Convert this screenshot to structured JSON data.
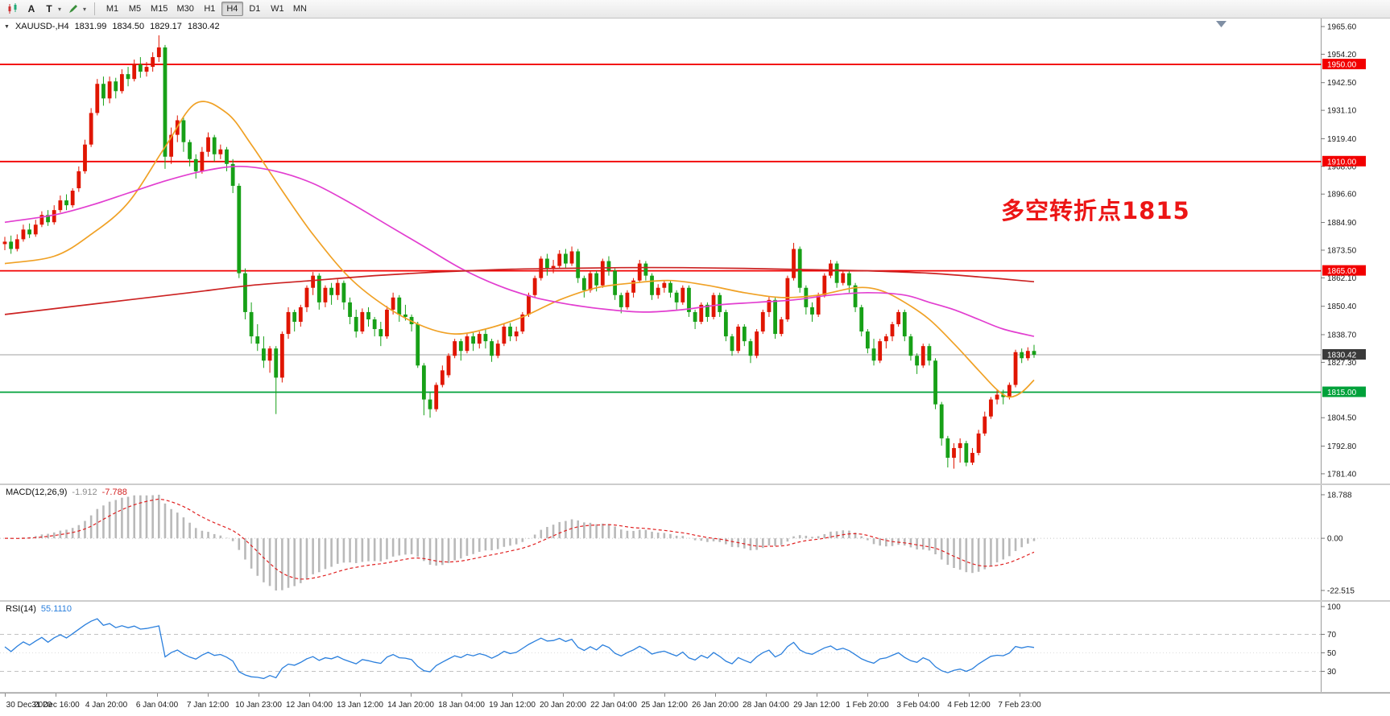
{
  "toolbar": {
    "tools": {
      "a_label": "A",
      "t_label": "T"
    },
    "timeframes": [
      "M1",
      "M5",
      "M15",
      "M30",
      "H1",
      "H4",
      "D1",
      "W1",
      "MN"
    ],
    "active_timeframe": "H4"
  },
  "price_chart": {
    "symbol_period": "XAUUSD-,H4",
    "ohlc": {
      "open": "1831.99",
      "high": "1834.50",
      "low": "1829.17",
      "close": "1830.42"
    },
    "annotation": "多空转折点1815",
    "axis_ticks": [
      "1965.60",
      "1954.20",
      "1942.50",
      "1931.10",
      "1919.40",
      "1908.00",
      "1896.60",
      "1884.90",
      "1873.50",
      "1862.10",
      "1850.40",
      "1838.70",
      "1827.30",
      "1804.50",
      "1792.80",
      "1781.40"
    ],
    "hlines": [
      {
        "value": 1950.0,
        "label": "1950.00",
        "color": "#f20000"
      },
      {
        "value": 1910.0,
        "label": "1910.00",
        "color": "#f20000"
      },
      {
        "value": 1865.0,
        "label": "1865.00",
        "color": "#f20000"
      },
      {
        "value": 1815.0,
        "label": "1815.00",
        "color": "#00a13a"
      }
    ],
    "current_price": {
      "value": 1830.42,
      "label": "1830.42",
      "line_color": "#a0a0a0",
      "badge_color": "#3a3a3a"
    }
  },
  "macd": {
    "label": "MACD(12,26,9)",
    "main_value": "-1.912",
    "signal_value": "-7.788",
    "axis_ticks": [
      "18.788",
      "0.00",
      "-22.515"
    ],
    "max": 18.788,
    "min": -22.515,
    "histogram_color": "#b9b9b9",
    "signal_color": "#e02020"
  },
  "rsi": {
    "label": "RSI(14)",
    "value": "55.1110",
    "axis_ticks": [
      "100",
      "70",
      "50",
      "30"
    ],
    "levels": [
      70,
      50,
      30
    ],
    "line_color": "#2a7fdd"
  },
  "chart_data": {
    "type": "candlestick",
    "symbol": "XAUUSD",
    "period": "H4",
    "up_color": "#e01500",
    "down_color": "#17a017",
    "ylim": [
      1781.4,
      1965.6
    ],
    "time_labels": [
      "30 Dec 2020",
      "31 Dec 16:00",
      "4 Jan 20:00",
      "6 Jan 04:00",
      "7 Jan 12:00",
      "10 Jan 23:00",
      "12 Jan 04:00",
      "13 Jan 12:00",
      "14 Jan 20:00",
      "18 Jan 04:00",
      "19 Jan 12:00",
      "20 Jan 20:00",
      "22 Jan 04:00",
      "25 Jan 12:00",
      "26 Jan 20:00",
      "28 Jan 04:00",
      "29 Jan 12:00",
      "1 Feb 20:00",
      "3 Feb 04:00",
      "4 Feb 12:00",
      "7 Feb 23:00"
    ],
    "candles": [
      [
        1876,
        1879,
        1873.5,
        1877
      ],
      [
        1877,
        1879.5,
        1872,
        1874
      ],
      [
        1874,
        1880,
        1873,
        1878
      ],
      [
        1878,
        1884,
        1877,
        1882
      ],
      [
        1882,
        1884.5,
        1878.5,
        1880
      ],
      [
        1880,
        1886,
        1879,
        1884
      ],
      [
        1884,
        1889.5,
        1883,
        1888
      ],
      [
        1888,
        1890,
        1883.5,
        1885
      ],
      [
        1885,
        1892,
        1884,
        1890
      ],
      [
        1890,
        1896,
        1889,
        1894
      ],
      [
        1894,
        1896.5,
        1890,
        1892
      ],
      [
        1892,
        1899,
        1891,
        1898
      ],
      [
        1899,
        1908,
        1897.5,
        1906
      ],
      [
        1906,
        1919,
        1905,
        1917
      ],
      [
        1917,
        1932,
        1916,
        1930
      ],
      [
        1930,
        1944,
        1929,
        1942
      ],
      [
        1942,
        1945,
        1933,
        1936
      ],
      [
        1936,
        1945,
        1934,
        1943
      ],
      [
        1943,
        1944.5,
        1936,
        1939
      ],
      [
        1939,
        1948,
        1938,
        1946
      ],
      [
        1946,
        1949,
        1941,
        1944
      ],
      [
        1944,
        1952,
        1943,
        1950
      ],
      [
        1950,
        1953,
        1944.5,
        1947
      ],
      [
        1947,
        1951,
        1945,
        1949
      ],
      [
        1949,
        1955,
        1947,
        1953
      ],
      [
        1953,
        1962,
        1951,
        1957
      ],
      [
        1957,
        1958,
        1907,
        1912
      ],
      [
        1912,
        1924,
        1909,
        1921
      ],
      [
        1921,
        1929,
        1918,
        1927
      ],
      [
        1927,
        1928,
        1914,
        1918
      ],
      [
        1918,
        1919,
        1908,
        1911
      ],
      [
        1911,
        1913,
        1903,
        1906
      ],
      [
        1906,
        1916,
        1905,
        1914
      ],
      [
        1914,
        1922,
        1912,
        1920
      ],
      [
        1920,
        1921,
        1910,
        1913
      ],
      [
        1913,
        1917,
        1911,
        1915
      ],
      [
        1915,
        1916,
        1906,
        1909
      ],
      [
        1909,
        1911,
        1897,
        1900
      ],
      [
        1900,
        1901,
        1862,
        1864
      ],
      [
        1864,
        1866,
        1845,
        1848
      ],
      [
        1848,
        1852,
        1835,
        1838
      ],
      [
        1838,
        1843,
        1832,
        1835
      ],
      [
        1833,
        1838,
        1825,
        1828
      ],
      [
        1828,
        1834,
        1823,
        1833
      ],
      [
        1833,
        1834,
        1806,
        1821
      ],
      [
        1821,
        1840,
        1819,
        1839
      ],
      [
        1839,
        1850,
        1837,
        1848
      ],
      [
        1848,
        1849,
        1840,
        1844
      ],
      [
        1844,
        1851,
        1842,
        1850
      ],
      [
        1850,
        1859,
        1848,
        1858
      ],
      [
        1858,
        1864.5,
        1855,
        1863
      ],
      [
        1863,
        1864,
        1849,
        1852
      ],
      [
        1852,
        1859,
        1850,
        1858
      ],
      [
        1858,
        1860,
        1851,
        1855
      ],
      [
        1855,
        1861.5,
        1853,
        1860
      ],
      [
        1860,
        1861,
        1849,
        1852
      ],
      [
        1852,
        1854,
        1843,
        1846
      ],
      [
        1846,
        1849,
        1837.5,
        1840
      ],
      [
        1840,
        1849.5,
        1839,
        1848
      ],
      [
        1848,
        1850,
        1842,
        1845
      ],
      [
        1845,
        1846,
        1838,
        1841
      ],
      [
        1841,
        1844,
        1834,
        1838
      ],
      [
        1838,
        1850.5,
        1837,
        1849
      ],
      [
        1849,
        1856,
        1847,
        1854
      ],
      [
        1854,
        1855,
        1844,
        1847
      ],
      [
        1847,
        1851,
        1844.5,
        1846
      ],
      [
        1846,
        1847,
        1840,
        1843
      ],
      [
        1843,
        1844,
        1825,
        1826
      ],
      [
        1826,
        1827,
        1805.5,
        1812
      ],
      [
        1812,
        1815,
        1804.5,
        1808
      ],
      [
        1808,
        1819,
        1807,
        1818
      ],
      [
        1818,
        1826,
        1817,
        1824
      ],
      [
        1822,
        1831,
        1821,
        1830
      ],
      [
        1830,
        1837,
        1829,
        1836
      ],
      [
        1836,
        1837,
        1828,
        1832
      ],
      [
        1832,
        1839,
        1831,
        1838
      ],
      [
        1838,
        1839.5,
        1832,
        1835
      ],
      [
        1835,
        1840,
        1833,
        1839
      ],
      [
        1839,
        1841,
        1833,
        1836
      ],
      [
        1836,
        1837,
        1827.5,
        1830
      ],
      [
        1830,
        1836.5,
        1829,
        1835
      ],
      [
        1835,
        1843,
        1834,
        1842
      ],
      [
        1842,
        1843.5,
        1836,
        1838
      ],
      [
        1838,
        1842,
        1836,
        1840
      ],
      [
        1840,
        1848,
        1839,
        1847
      ],
      [
        1847,
        1856,
        1846,
        1855
      ],
      [
        1855,
        1863,
        1854,
        1862
      ],
      [
        1862,
        1871,
        1861,
        1870
      ],
      [
        1870,
        1872,
        1863,
        1866
      ],
      [
        1866,
        1869.5,
        1864,
        1867
      ],
      [
        1867,
        1873.5,
        1866,
        1872
      ],
      [
        1872,
        1874,
        1866,
        1868
      ],
      [
        1868,
        1875,
        1867,
        1873
      ],
      [
        1873,
        1874,
        1860,
        1862
      ],
      [
        1862,
        1863,
        1854,
        1857
      ],
      [
        1857,
        1865,
        1856,
        1864
      ],
      [
        1864,
        1865,
        1856.5,
        1859
      ],
      [
        1859,
        1870,
        1858,
        1869
      ],
      [
        1869,
        1871,
        1863,
        1865
      ],
      [
        1865,
        1866,
        1853,
        1855
      ],
      [
        1855,
        1856,
        1847.5,
        1850
      ],
      [
        1850,
        1857,
        1849,
        1856
      ],
      [
        1856,
        1862,
        1854,
        1861
      ],
      [
        1861,
        1869.5,
        1860,
        1868
      ],
      [
        1868,
        1869,
        1861,
        1863
      ],
      [
        1863,
        1864,
        1853,
        1855
      ],
      [
        1855,
        1859.5,
        1853.5,
        1858
      ],
      [
        1858,
        1861,
        1856,
        1860
      ],
      [
        1860,
        1861,
        1854,
        1856
      ],
      [
        1856,
        1857,
        1849,
        1852
      ],
      [
        1852,
        1859,
        1851,
        1858
      ],
      [
        1858,
        1859,
        1846,
        1848
      ],
      [
        1848,
        1849,
        1841,
        1844
      ],
      [
        1844,
        1852,
        1843,
        1851
      ],
      [
        1851,
        1852,
        1844,
        1846
      ],
      [
        1846,
        1856,
        1845,
        1855
      ],
      [
        1855,
        1856,
        1846,
        1848
      ],
      [
        1848,
        1849,
        1836,
        1838
      ],
      [
        1838,
        1839,
        1830,
        1832
      ],
      [
        1832,
        1843,
        1831,
        1842
      ],
      [
        1842,
        1843,
        1834,
        1836
      ],
      [
        1836,
        1837,
        1827,
        1830
      ],
      [
        1830,
        1841,
        1829,
        1840
      ],
      [
        1840,
        1849,
        1839,
        1848
      ],
      [
        1848,
        1854.5,
        1846,
        1853
      ],
      [
        1853,
        1854,
        1837,
        1839
      ],
      [
        1839,
        1846,
        1838,
        1845
      ],
      [
        1845,
        1863,
        1844,
        1862
      ],
      [
        1862,
        1876.5,
        1861,
        1874
      ],
      [
        1874,
        1875,
        1856,
        1858
      ],
      [
        1858,
        1859,
        1847,
        1850
      ],
      [
        1850,
        1852,
        1844,
        1847
      ],
      [
        1847,
        1856,
        1846,
        1855
      ],
      [
        1855,
        1864,
        1854,
        1863
      ],
      [
        1863,
        1869.5,
        1862,
        1868
      ],
      [
        1868,
        1869,
        1858,
        1860
      ],
      [
        1860,
        1865,
        1859,
        1864
      ],
      [
        1864,
        1865,
        1856,
        1859
      ],
      [
        1859,
        1860,
        1848,
        1850
      ],
      [
        1850,
        1851,
        1838,
        1840
      ],
      [
        1840,
        1841,
        1831,
        1833
      ],
      [
        1833,
        1837,
        1826,
        1828
      ],
      [
        1828,
        1837,
        1827,
        1836
      ],
      [
        1836,
        1839,
        1833,
        1838
      ],
      [
        1838,
        1844,
        1836,
        1843
      ],
      [
        1843,
        1849,
        1842,
        1848
      ],
      [
        1848,
        1849,
        1836,
        1838
      ],
      [
        1838,
        1839,
        1828,
        1830
      ],
      [
        1830,
        1831,
        1822.5,
        1826
      ],
      [
        1826,
        1835,
        1825,
        1834
      ],
      [
        1834,
        1835,
        1826,
        1828
      ],
      [
        1828,
        1829,
        1808,
        1810
      ],
      [
        1810,
        1811,
        1793,
        1796
      ],
      [
        1796,
        1797,
        1784,
        1788
      ],
      [
        1788,
        1794,
        1783.5,
        1792
      ],
      [
        1792,
        1796,
        1786,
        1794
      ],
      [
        1794,
        1795,
        1784.5,
        1786
      ],
      [
        1786,
        1792,
        1785,
        1790
      ],
      [
        1790,
        1799.5,
        1789,
        1798
      ],
      [
        1798,
        1807,
        1797,
        1805
      ],
      [
        1805,
        1813,
        1804,
        1812
      ],
      [
        1812,
        1816,
        1810,
        1814
      ],
      [
        1814,
        1816,
        1810,
        1813
      ],
      [
        1813,
        1819,
        1812,
        1818
      ],
      [
        1818,
        1832.5,
        1817,
        1831.5
      ],
      [
        1831.5,
        1833,
        1827,
        1829
      ],
      [
        1829,
        1833.5,
        1828,
        1832
      ],
      [
        1831.99,
        1834.5,
        1829.17,
        1830.42
      ]
    ],
    "moving_averages": [
      {
        "name": "ma-fast-orange",
        "color": "#f0a125",
        "points": [
          [
            0,
            1868
          ],
          [
            8,
            1871
          ],
          [
            14,
            1880
          ],
          [
            20,
            1893
          ],
          [
            26,
            1916
          ],
          [
            31,
            1934
          ],
          [
            36,
            1930
          ],
          [
            40,
            1917
          ],
          [
            45,
            1898
          ],
          [
            50,
            1880
          ],
          [
            56,
            1862
          ],
          [
            62,
            1850
          ],
          [
            68,
            1842
          ],
          [
            73,
            1839
          ],
          [
            78,
            1841
          ],
          [
            84,
            1846
          ],
          [
            90,
            1853
          ],
          [
            96,
            1858
          ],
          [
            102,
            1860
          ],
          [
            108,
            1861
          ],
          [
            114,
            1859
          ],
          [
            120,
            1856
          ],
          [
            126,
            1854
          ],
          [
            132,
            1855
          ],
          [
            138,
            1858
          ],
          [
            142,
            1857
          ],
          [
            146,
            1852
          ],
          [
            150,
            1845
          ],
          [
            154,
            1835
          ],
          [
            158,
            1824
          ],
          [
            161,
            1816
          ],
          [
            163,
            1813
          ],
          [
            165,
            1815
          ],
          [
            167,
            1820
          ]
        ]
      },
      {
        "name": "ma-mid-magenta",
        "color": "#e23ed0",
        "points": [
          [
            0,
            1885
          ],
          [
            8,
            1888
          ],
          [
            14,
            1892
          ],
          [
            20,
            1897
          ],
          [
            26,
            1902
          ],
          [
            32,
            1906
          ],
          [
            38,
            1908
          ],
          [
            44,
            1906
          ],
          [
            50,
            1901
          ],
          [
            56,
            1893
          ],
          [
            62,
            1884
          ],
          [
            68,
            1875
          ],
          [
            74,
            1866
          ],
          [
            80,
            1859
          ],
          [
            86,
            1854
          ],
          [
            92,
            1851
          ],
          [
            98,
            1849
          ],
          [
            104,
            1848
          ],
          [
            110,
            1849
          ],
          [
            116,
            1851
          ],
          [
            122,
            1852
          ],
          [
            128,
            1853
          ],
          [
            134,
            1855
          ],
          [
            140,
            1856
          ],
          [
            146,
            1855
          ],
          [
            150,
            1852
          ],
          [
            154,
            1849
          ],
          [
            158,
            1845
          ],
          [
            162,
            1841
          ],
          [
            167,
            1838
          ]
        ]
      },
      {
        "name": "ma-slow-red",
        "color": "#cc2222",
        "points": [
          [
            0,
            1847
          ],
          [
            10,
            1850
          ],
          [
            20,
            1853
          ],
          [
            30,
            1856
          ],
          [
            40,
            1859
          ],
          [
            50,
            1861
          ],
          [
            60,
            1863
          ],
          [
            70,
            1864.5
          ],
          [
            80,
            1865.5
          ],
          [
            90,
            1866
          ],
          [
            100,
            1866.3
          ],
          [
            110,
            1866.3
          ],
          [
            120,
            1866
          ],
          [
            130,
            1865.5
          ],
          [
            140,
            1865
          ],
          [
            150,
            1864
          ],
          [
            158,
            1862.5
          ],
          [
            167,
            1860.5
          ]
        ]
      }
    ]
  }
}
